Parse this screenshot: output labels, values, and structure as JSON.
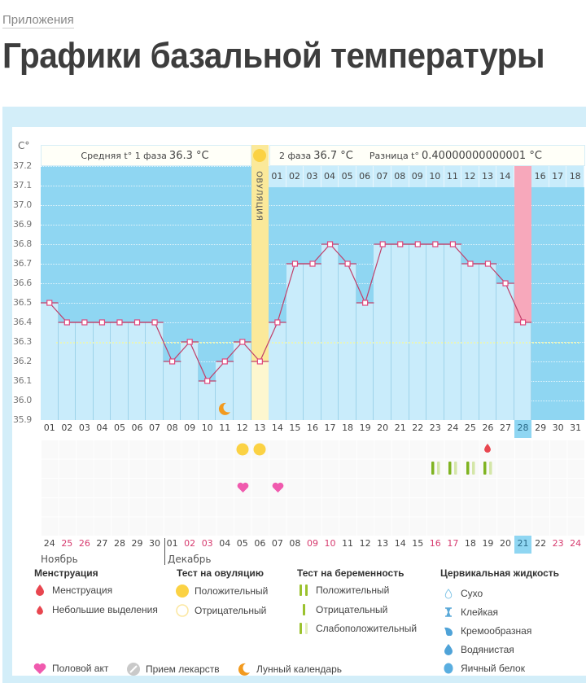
{
  "breadcrumb": "Приложения",
  "page_title": "Графики базальной температуры",
  "chart": {
    "unit": "C°",
    "phase1_label": "Средняя t° 1 фаза",
    "phase1_value": "36.3 °C",
    "phase2_label": "2 фаза",
    "phase2_value": "36.7 °C",
    "diff_label": "Разница t°",
    "diff_value": "0.40000000000001 °C",
    "ovulation_label": "ОВУЛЯЦИЯ",
    "months": [
      "Ноябрь",
      "Декабрь"
    ]
  },
  "chart_data": {
    "type": "line",
    "title": "Графики базальной температуры",
    "ylabel": "C°",
    "ylim": [
      35.9,
      37.2
    ],
    "yticks": [
      "37.2",
      "37.1",
      "37.0",
      "36.9",
      "36.8",
      "36.7",
      "36.6",
      "36.5",
      "36.4",
      "36.3",
      "36.2",
      "36.1",
      "36.0",
      "35.9"
    ],
    "cycle_days": [
      "01",
      "02",
      "03",
      "04",
      "05",
      "06",
      "07",
      "08",
      "09",
      "10",
      "11",
      "12",
      "13",
      "14",
      "15",
      "16",
      "17",
      "18",
      "19",
      "20",
      "21",
      "22",
      "23",
      "24",
      "25",
      "26",
      "27",
      "28",
      "29",
      "30",
      "31"
    ],
    "series": [
      {
        "name": "Базальная температура",
        "values": [
          36.5,
          36.4,
          36.4,
          36.4,
          36.4,
          36.4,
          36.4,
          36.2,
          36.3,
          36.1,
          36.2,
          36.3,
          36.2,
          36.4,
          36.7,
          36.7,
          36.8,
          36.7,
          36.5,
          36.8,
          36.8,
          36.8,
          36.8,
          36.8,
          36.7,
          36.7,
          36.6,
          36.4,
          null,
          null,
          null
        ]
      }
    ],
    "average_line": 36.3,
    "ovulation_day": 13,
    "phase2_days": [
      "01",
      "02",
      "03",
      "04",
      "05",
      "06",
      "07",
      "08",
      "09",
      "10",
      "11",
      "12",
      "13",
      "14",
      "15",
      "16",
      "17",
      "18"
    ],
    "highlight_phase2_day": "15",
    "highlight_cycle_day": "28",
    "calendar_dates": [
      "24",
      "25",
      "26",
      "27",
      "28",
      "29",
      "30",
      "01",
      "02",
      "03",
      "04",
      "05",
      "06",
      "07",
      "08",
      "09",
      "10",
      "11",
      "12",
      "13",
      "14",
      "15",
      "16",
      "17",
      "18",
      "19",
      "20",
      "21",
      "22",
      "23",
      "24"
    ],
    "weekend_dates_idx": [
      1,
      2,
      8,
      9,
      15,
      16,
      22,
      23,
      29,
      30
    ],
    "today_idx": 27,
    "events": {
      "moon": [
        11
      ],
      "ovulation_test_positive": [
        12,
        13
      ],
      "intercourse": [
        12,
        14
      ],
      "spotting": [
        26
      ],
      "pregnancy_test_negative_pairs": [
        23,
        24,
        25,
        26
      ]
    },
    "grid": true
  },
  "legend": {
    "menstruation": {
      "title": "Менструация",
      "items": [
        "Менструация",
        "Небольшие выделения"
      ]
    },
    "ovulation_test": {
      "title": "Тест на овуляцию",
      "items": [
        "Положительный",
        "Отрицательный"
      ]
    },
    "pregnancy_test": {
      "title": "Тест на беременность",
      "items": [
        "Положительный",
        "Отрицательный",
        "Слабоположительный"
      ]
    },
    "cervical": {
      "title": "Цервикальная жидкость",
      "items": [
        "Сухо",
        "Клейкая",
        "Кремообразная",
        "Водянистая",
        "Яичный белок"
      ]
    },
    "other": [
      "Половой акт",
      "Прием лекарств",
      "Лунный календарь"
    ]
  },
  "colors": {
    "plot_bg": "#8fd6f2",
    "bar": "#c9ecfb",
    "line": "#c0406a",
    "ovulation": "#fbe99a",
    "highlight": "#f7a8bb",
    "weekend": "#d63a6e",
    "positive": "#fbd244",
    "heart": "#f05aae",
    "green": "#7fb321"
  }
}
